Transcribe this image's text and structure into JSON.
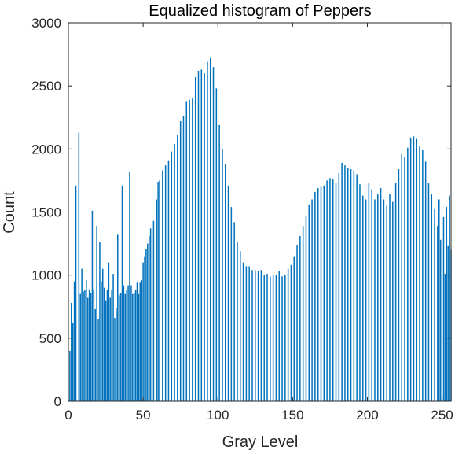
{
  "chart_data": {
    "type": "bar",
    "title": "Equalized histogram of Peppers",
    "xlabel": "Gray Level",
    "ylabel": "Count",
    "xlim": [
      0,
      256
    ],
    "ylim": [
      0,
      3000
    ],
    "xticks": [
      0,
      50,
      100,
      150,
      200,
      250
    ],
    "yticks": [
      0,
      500,
      1000,
      1500,
      2000,
      2500,
      3000
    ],
    "grid": false,
    "bar_color": "#0072BD",
    "series": [
      {
        "points": [
          [
            1,
            400
          ],
          [
            2,
            780
          ],
          [
            3,
            620
          ],
          [
            4,
            950
          ],
          [
            5,
            1710
          ],
          [
            7,
            2130
          ],
          [
            8,
            850
          ],
          [
            9,
            1050
          ],
          [
            10,
            870
          ],
          [
            11,
            880
          ],
          [
            12,
            960
          ],
          [
            13,
            820
          ],
          [
            14,
            880
          ],
          [
            15,
            860
          ],
          [
            16,
            1510
          ],
          [
            17,
            880
          ],
          [
            18,
            730
          ],
          [
            19,
            1390
          ],
          [
            20,
            650
          ],
          [
            21,
            1260
          ],
          [
            22,
            950
          ],
          [
            23,
            1050
          ],
          [
            24,
            900
          ],
          [
            25,
            800
          ],
          [
            26,
            880
          ],
          [
            27,
            1100
          ],
          [
            28,
            820
          ],
          [
            29,
            880
          ],
          [
            30,
            1010
          ],
          [
            31,
            660
          ],
          [
            32,
            740
          ],
          [
            33,
            1320
          ],
          [
            34,
            840
          ],
          [
            35,
            860
          ],
          [
            36,
            1710
          ],
          [
            37,
            920
          ],
          [
            38,
            850
          ],
          [
            39,
            880
          ],
          [
            40,
            920
          ],
          [
            41,
            1820
          ],
          [
            42,
            920
          ],
          [
            43,
            850
          ],
          [
            44,
            860
          ],
          [
            45,
            880
          ],
          [
            46,
            940
          ],
          [
            47,
            850
          ],
          [
            48,
            940
          ],
          [
            49,
            960
          ],
          [
            50,
            1100
          ],
          [
            51,
            1150
          ],
          [
            52,
            1210
          ],
          [
            53,
            1250
          ],
          [
            54,
            1310
          ],
          [
            55,
            1370
          ],
          [
            57,
            1430
          ],
          [
            59,
            1600
          ],
          [
            60,
            1740
          ],
          [
            61,
            1750
          ],
          [
            63,
            1830
          ],
          [
            65,
            1870
          ],
          [
            67,
            1910
          ],
          [
            69,
            1980
          ],
          [
            71,
            2040
          ],
          [
            73,
            2110
          ],
          [
            75,
            2220
          ],
          [
            77,
            2260
          ],
          [
            79,
            2380
          ],
          [
            81,
            2390
          ],
          [
            83,
            2400
          ],
          [
            85,
            2570
          ],
          [
            87,
            2620
          ],
          [
            89,
            2630
          ],
          [
            91,
            2600
          ],
          [
            93,
            2690
          ],
          [
            95,
            2720
          ],
          [
            97,
            2650
          ],
          [
            99,
            2480
          ],
          [
            101,
            2190
          ],
          [
            103,
            2000
          ],
          [
            105,
            1880
          ],
          [
            107,
            1710
          ],
          [
            109,
            1540
          ],
          [
            111,
            1420
          ],
          [
            113,
            1260
          ],
          [
            115,
            1190
          ],
          [
            117,
            1100
          ],
          [
            119,
            1070
          ],
          [
            121,
            1070
          ],
          [
            123,
            1040
          ],
          [
            125,
            1040
          ],
          [
            127,
            1030
          ],
          [
            129,
            1040
          ],
          [
            131,
            1000
          ],
          [
            133,
            1010
          ],
          [
            135,
            990
          ],
          [
            137,
            1000
          ],
          [
            139,
            1000
          ],
          [
            141,
            1030
          ],
          [
            143,
            990
          ],
          [
            145,
            1000
          ],
          [
            147,
            1050
          ],
          [
            149,
            1080
          ],
          [
            151,
            1150
          ],
          [
            153,
            1240
          ],
          [
            155,
            1310
          ],
          [
            157,
            1390
          ],
          [
            159,
            1470
          ],
          [
            161,
            1560
          ],
          [
            163,
            1600
          ],
          [
            165,
            1660
          ],
          [
            167,
            1690
          ],
          [
            169,
            1700
          ],
          [
            171,
            1710
          ],
          [
            173,
            1750
          ],
          [
            175,
            1770
          ],
          [
            177,
            1760
          ],
          [
            179,
            1730
          ],
          [
            181,
            1810
          ],
          [
            183,
            1890
          ],
          [
            185,
            1870
          ],
          [
            187,
            1850
          ],
          [
            189,
            1840
          ],
          [
            191,
            1830
          ],
          [
            193,
            1800
          ],
          [
            195,
            1720
          ],
          [
            197,
            1630
          ],
          [
            199,
            1600
          ],
          [
            201,
            1730
          ],
          [
            203,
            1680
          ],
          [
            205,
            1600
          ],
          [
            207,
            1640
          ],
          [
            209,
            1690
          ],
          [
            211,
            1600
          ],
          [
            213,
            1550
          ],
          [
            215,
            1640
          ],
          [
            217,
            1580
          ],
          [
            219,
            1730
          ],
          [
            221,
            1840
          ],
          [
            223,
            1960
          ],
          [
            225,
            1940
          ],
          [
            227,
            2010
          ],
          [
            229,
            2090
          ],
          [
            231,
            2100
          ],
          [
            233,
            2080
          ],
          [
            235,
            2020
          ],
          [
            237,
            1990
          ],
          [
            239,
            1900
          ],
          [
            241,
            1730
          ],
          [
            243,
            1640
          ],
          [
            245,
            1530
          ],
          [
            247,
            1390
          ],
          [
            248,
            1600
          ],
          [
            249,
            1280
          ],
          [
            251,
            1460
          ],
          [
            252,
            1010
          ],
          [
            253,
            1540
          ],
          [
            254,
            1230
          ],
          [
            255,
            1630
          ],
          [
            256,
            1200
          ]
        ]
      }
    ]
  }
}
